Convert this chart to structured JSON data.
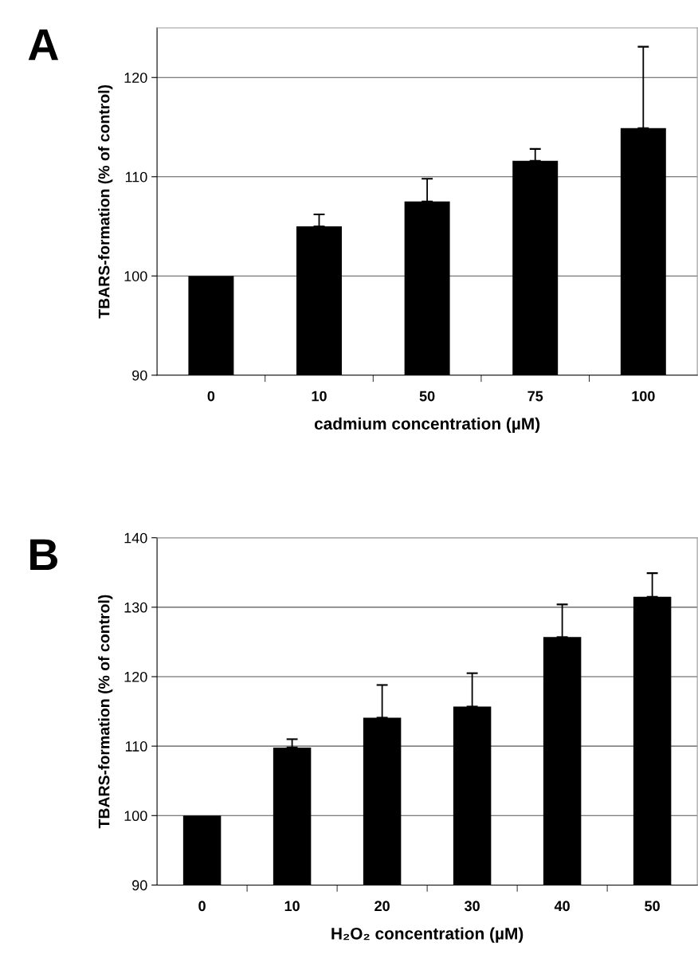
{
  "chart_data": [
    {
      "type": "bar",
      "title": "A",
      "xlabel": "cadmium concentration (µM)",
      "ylabel": "TBARS-formation (% of control)",
      "categories": [
        "0",
        "10",
        "50",
        "75",
        "100"
      ],
      "values": [
        100,
        105,
        107.5,
        111.6,
        114.9
      ],
      "color": "#000000",
      "errors": [
        null,
        [
          105,
          106.2
        ],
        [
          107.5,
          109.8
        ],
        [
          111.6,
          112.8
        ],
        [
          114.9,
          123.1
        ]
      ],
      "ylim": [
        90,
        125
      ],
      "yticks": [
        90,
        100,
        110,
        120
      ],
      "grid": "y"
    },
    {
      "type": "bar",
      "title": "B",
      "xlabel": "H₂O₂ concentration (µM)",
      "ylabel": "TBARS-formation (% of control)",
      "categories": [
        "0",
        "10",
        "20",
        "30",
        "40",
        "50"
      ],
      "values": [
        100,
        109.8,
        114.1,
        115.7,
        125.7,
        131.5
      ],
      "color": "#000000",
      "errors": [
        null,
        [
          109.8,
          111.0
        ],
        [
          114.1,
          118.8
        ],
        [
          115.7,
          120.5
        ],
        [
          125.7,
          130.4
        ],
        [
          131.5,
          134.9
        ]
      ],
      "ylim": [
        90,
        140
      ],
      "yticks": [
        90,
        100,
        110,
        120,
        130,
        140
      ],
      "grid": "y"
    }
  ]
}
